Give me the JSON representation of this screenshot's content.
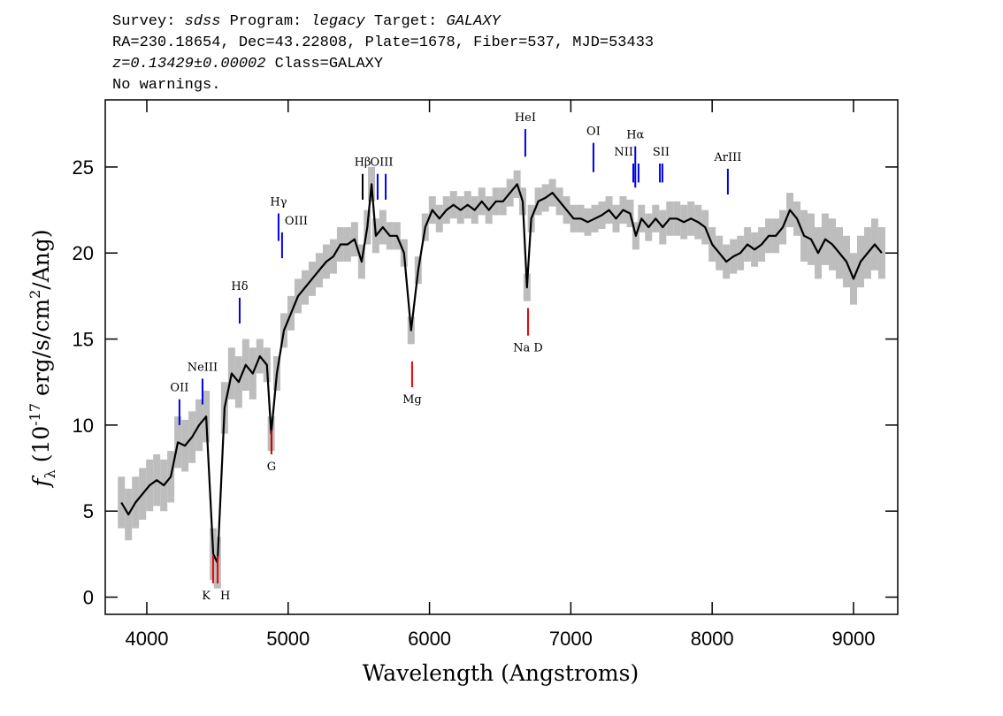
{
  "chart_data": {
    "type": "line",
    "header": [
      [
        {
          "text": "Survey: ",
          "italic": false
        },
        {
          "text": "sdss",
          "italic": true
        },
        {
          "text": " Program: ",
          "italic": false
        },
        {
          "text": "legacy",
          "italic": true
        },
        {
          "text": " Target: ",
          "italic": false
        },
        {
          "text": "GALAXY",
          "italic": true
        }
      ],
      [
        {
          "text": "RA=230.18654, Dec=43.22808, Plate=1678, Fiber=537, MJD=53433",
          "italic": false
        }
      ],
      [
        {
          "text": "z=0.13429±0.00002",
          "italic": true
        },
        {
          "text": " Class=GALAXY",
          "italic": false
        }
      ],
      [
        {
          "text": "No warnings.",
          "italic": false
        }
      ]
    ],
    "x_label": "Wavelength (Angstroms)",
    "y_label": [
      {
        "text": "f",
        "italic": true
      },
      {
        "text": "λ",
        "shift": "sub"
      },
      {
        "text": " (10"
      },
      {
        "text": "-17",
        "shift": "sup"
      },
      {
        "text": " erg/s/cm"
      },
      {
        "text": "2",
        "shift": "sup"
      },
      {
        "text": "/Ang)"
      }
    ],
    "xlim": [
      3706,
      9313
    ],
    "ylim": [
      -1,
      28.9
    ],
    "xticks": [
      4000,
      5000,
      6000,
      7000,
      8000,
      9000
    ],
    "yticks": [
      0,
      5,
      10,
      15,
      20,
      25
    ],
    "color": "#000000",
    "error_color": "#bdbdbd",
    "x": [
      3820,
      3870,
      3920,
      3970,
      4020,
      4070,
      4120,
      4170,
      4220,
      4270,
      4320,
      4370,
      4420,
      4470,
      4500,
      4550,
      4600,
      4650,
      4700,
      4750,
      4800,
      4850,
      4880,
      4920,
      4970,
      5020,
      5070,
      5120,
      5170,
      5220,
      5270,
      5320,
      5370,
      5420,
      5470,
      5520,
      5560,
      5590,
      5620,
      5670,
      5720,
      5770,
      5820,
      5870,
      5920,
      5970,
      6020,
      6070,
      6120,
      6170,
      6220,
      6270,
      6320,
      6370,
      6420,
      6470,
      6520,
      6570,
      6620,
      6660,
      6690,
      6720,
      6770,
      6820,
      6870,
      6920,
      6970,
      7020,
      7070,
      7120,
      7170,
      7220,
      7270,
      7320,
      7370,
      7420,
      7460,
      7500,
      7550,
      7600,
      7650,
      7700,
      7750,
      7800,
      7850,
      7900,
      7950,
      8000,
      8050,
      8100,
      8150,
      8200,
      8250,
      8300,
      8350,
      8400,
      8450,
      8500,
      8550,
      8600,
      8650,
      8700,
      8750,
      8800,
      8850,
      8900,
      8950,
      9000,
      9050,
      9100,
      9150,
      9200
    ],
    "values": [
      5.5,
      4.8,
      5.5,
      6.0,
      6.5,
      6.8,
      6.5,
      7.0,
      9.0,
      8.8,
      9.3,
      10.0,
      10.5,
      2.5,
      2.0,
      11.0,
      13.0,
      12.5,
      13.5,
      13.0,
      14.0,
      13.5,
      9.5,
      13.0,
      15.5,
      16.5,
      17.5,
      18.0,
      18.5,
      19.0,
      19.5,
      19.8,
      20.5,
      20.5,
      20.8,
      19.5,
      21.5,
      24.0,
      21.0,
      21.5,
      21.0,
      21.0,
      20.0,
      15.5,
      19.0,
      21.5,
      22.5,
      22.0,
      22.5,
      22.8,
      22.5,
      22.8,
      22.5,
      23.0,
      22.5,
      23.0,
      23.0,
      23.5,
      24.0,
      23.0,
      18.0,
      22.0,
      23.0,
      23.2,
      23.5,
      23.0,
      22.5,
      22.0,
      22.0,
      21.8,
      22.0,
      22.2,
      22.5,
      22.0,
      22.5,
      22.3,
      21.0,
      22.0,
      21.5,
      22.0,
      21.5,
      22.0,
      22.0,
      21.8,
      22.0,
      21.8,
      21.5,
      20.5,
      20.0,
      19.5,
      19.8,
      20.0,
      20.5,
      20.2,
      20.5,
      21.0,
      21.0,
      21.5,
      22.5,
      22.0,
      21.0,
      20.8,
      20.0,
      20.8,
      20.5,
      20.0,
      19.5,
      18.5,
      19.5,
      20.0,
      20.5,
      20.0
    ],
    "errors": [
      1.5,
      1.5,
      1.5,
      1.5,
      1.5,
      1.5,
      1.5,
      1.5,
      1.5,
      1.5,
      1.5,
      1.5,
      1.5,
      1.5,
      1.5,
      1.5,
      1.5,
      1.5,
      1.5,
      1.5,
      1.0,
      1.0,
      1.0,
      1.0,
      1.0,
      1.0,
      1.0,
      1.0,
      1.0,
      1.0,
      1.0,
      1.0,
      1.0,
      1.0,
      1.0,
      1.0,
      1.0,
      1.0,
      1.0,
      1.0,
      0.8,
      0.8,
      0.8,
      0.8,
      0.8,
      0.8,
      0.8,
      0.8,
      0.8,
      0.8,
      0.8,
      0.8,
      0.8,
      0.8,
      0.8,
      0.8,
      0.8,
      0.8,
      0.8,
      0.8,
      0.8,
      0.8,
      0.8,
      0.8,
      0.8,
      0.8,
      0.8,
      0.8,
      0.8,
      0.8,
      0.8,
      0.8,
      0.8,
      0.8,
      0.8,
      0.8,
      0.8,
      0.8,
      0.8,
      0.8,
      1.0,
      1.0,
      1.0,
      1.0,
      1.0,
      1.0,
      1.0,
      1.0,
      1.0,
      1.0,
      1.0,
      1.0,
      1.0,
      1.0,
      1.0,
      1.0,
      1.0,
      1.0,
      1.0,
      1.0,
      1.5,
      1.5,
      1.5,
      1.5,
      1.5,
      1.5,
      1.5,
      1.5,
      1.5,
      1.5,
      1.5,
      1.5
    ],
    "lines": [
      {
        "label": "OII",
        "x": [
          4231
        ],
        "y": [
          10.0,
          11.5
        ],
        "color": "#0000ee",
        "side": "above",
        "anchor": "middle"
      },
      {
        "label": "NeIII",
        "x": [
          4394
        ],
        "y": [
          11.2,
          12.7
        ],
        "color": "#0000ee",
        "side": "above",
        "anchor": "middle"
      },
      {
        "label": "K",
        "x": [
          4469
        ],
        "y": [
          0.8,
          2.4
        ],
        "color": "#ee0000",
        "side": "below",
        "anchor": "end"
      },
      {
        "label": "H",
        "x": [
          4501
        ],
        "y": [
          0.8,
          2.4
        ],
        "color": "#ee0000",
        "side": "below",
        "anchor": "start"
      },
      {
        "label": "Hδ",
        "x": [
          4657
        ],
        "y": [
          15.9,
          17.4
        ],
        "color": "#0000ee",
        "side": "above",
        "anchor": "middle"
      },
      {
        "label": "G",
        "x": [
          4882
        ],
        "y": [
          8.3,
          9.7
        ],
        "color": "#cc0000",
        "side": "below",
        "anchor": "middle"
      },
      {
        "label": "Hγ",
        "x": [
          4932
        ],
        "y": [
          20.7,
          22.3
        ],
        "color": "#0000ee",
        "side": "above",
        "anchor": "middle"
      },
      {
        "label": "OIII",
        "x": [
          4957
        ],
        "y": [
          19.7,
          21.2
        ],
        "color": "#0000ee",
        "side": "above",
        "anchor": "start"
      },
      {
        "label": "Hβ",
        "x": [
          5527
        ],
        "y": [
          23.1,
          24.6
        ],
        "color": "#000000",
        "side": "above",
        "anchor": "middle"
      },
      {
        "label": "OIII",
        "x": [
          5633,
          5690
        ],
        "y": [
          23.1,
          24.6
        ],
        "color": "#0000ee",
        "side": "above",
        "anchor": "middle"
      },
      {
        "label": "Mg",
        "x": [
          5877
        ],
        "y": [
          12.2,
          13.7
        ],
        "color": "#ee0000",
        "side": "below",
        "anchor": "middle"
      },
      {
        "label": "HeI",
        "x": [
          6678
        ],
        "y": [
          25.6,
          27.2
        ],
        "color": "#0000ee",
        "side": "above",
        "anchor": "middle"
      },
      {
        "label": "Na D",
        "x": [
          6697
        ],
        "y": [
          15.2,
          16.8
        ],
        "color": "#ee0000",
        "side": "below",
        "anchor": "middle"
      },
      {
        "label": "OI",
        "x": [
          7160
        ],
        "y": [
          24.7,
          26.4
        ],
        "color": "#0000ee",
        "side": "above",
        "anchor": "middle"
      },
      {
        "label": "NII",
        "x": [
          7442,
          7479
        ],
        "y": [
          24.1,
          25.2
        ],
        "color": "#0000ee",
        "side": "above",
        "anchor": "end"
      },
      {
        "label": "Hα",
        "x": [
          7456
        ],
        "y": [
          23.8,
          26.2
        ],
        "color": "#0000ee",
        "side": "above",
        "anchor": "middle"
      },
      {
        "label": "SII",
        "x": [
          7630,
          7648
        ],
        "y": [
          24.1,
          25.2
        ],
        "color": "#0000ee",
        "side": "above",
        "anchor": "middle"
      },
      {
        "label": "ArIII",
        "x": [
          8111
        ],
        "y": [
          23.4,
          24.9
        ],
        "color": "#0000ee",
        "side": "above",
        "anchor": "middle"
      }
    ]
  }
}
